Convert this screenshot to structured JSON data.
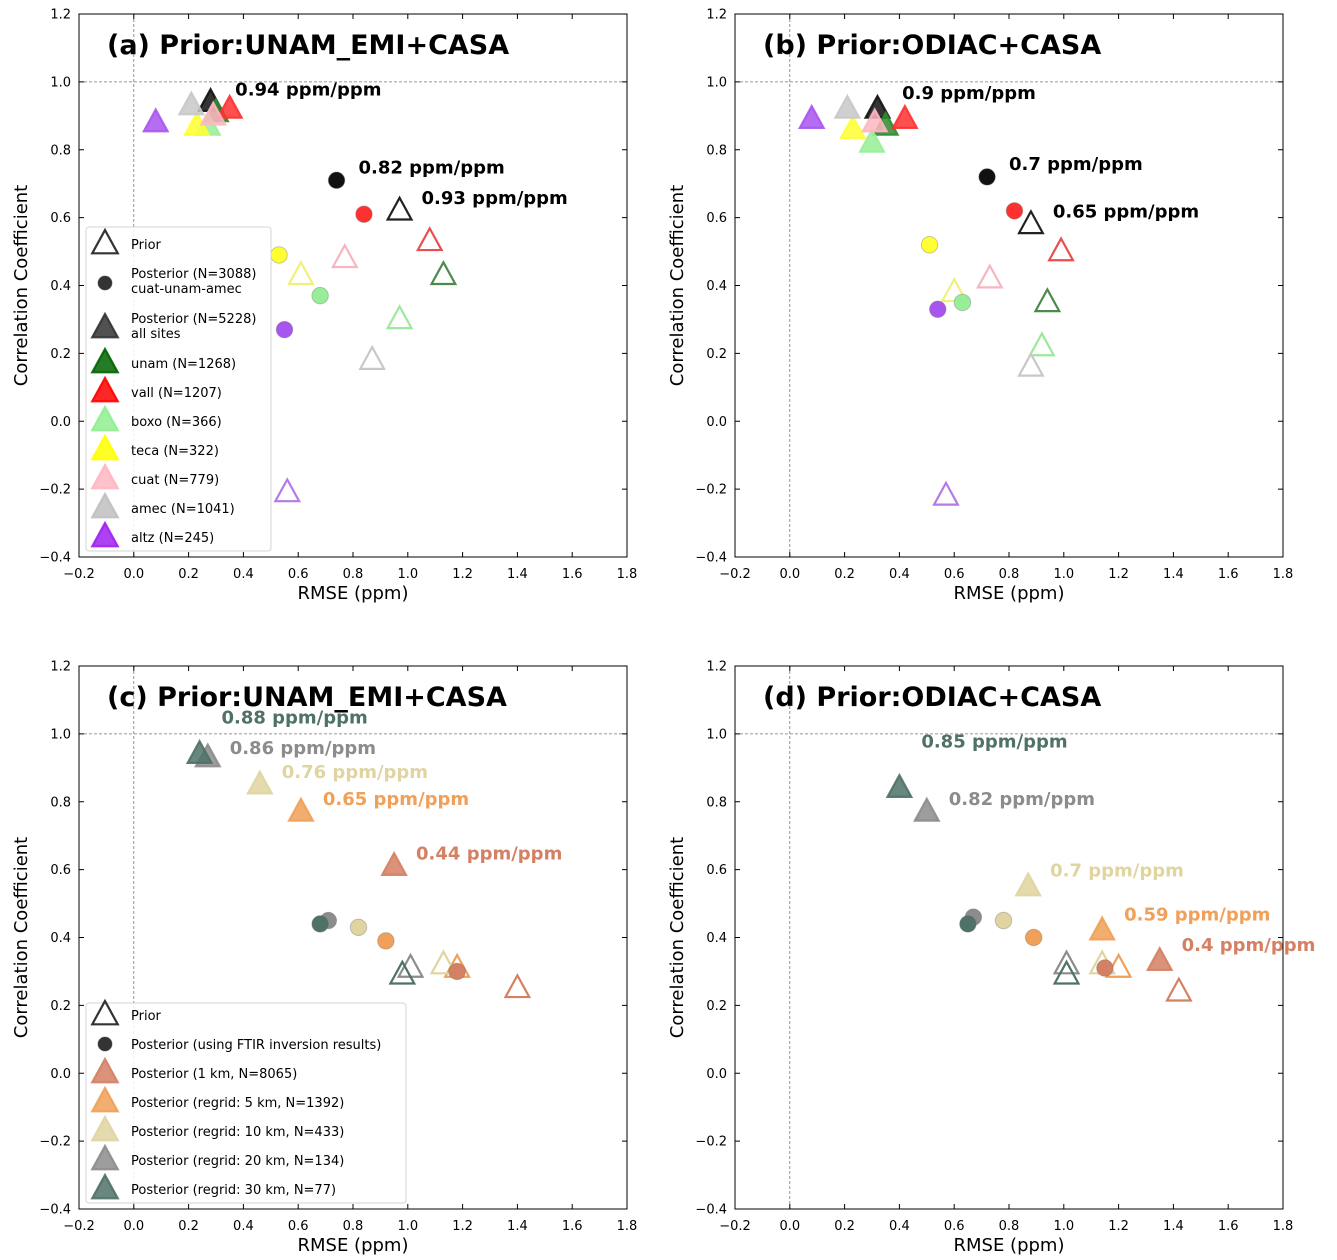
{
  "chart_data": [
    {
      "id": "a",
      "type": "scatter",
      "title": "(a) Prior:UNAM_EMI+CASA",
      "xlabel": "RMSE (ppm)",
      "ylabel": "Correlation Coefficient",
      "xlim": [
        -0.2,
        1.8
      ],
      "ylim": [
        -0.4,
        1.2
      ],
      "xticks": [
        "−0.2",
        "0.0",
        "0.2",
        "0.4",
        "0.6",
        "0.8",
        "1.0",
        "1.2",
        "1.4",
        "1.6",
        "1.8"
      ],
      "yticks": [
        "−0.4",
        "−0.2",
        "0.0",
        "0.2",
        "0.4",
        "0.6",
        "0.8",
        "1.0",
        "1.2"
      ],
      "grid": false,
      "reference_lines": {
        "y": 1.0,
        "x": 0.0
      },
      "legend": {
        "placement": "lower-left",
        "entries": [
          {
            "label": "Prior",
            "marker": "triangle-open",
            "color": "#333333"
          },
          {
            "label": "Posterior (N=3088)\ncuat-unam-amec",
            "marker": "circle",
            "color": "#333333"
          },
          {
            "label": "Posterior (N=5228)\nall sites",
            "marker": "triangle",
            "color": "#333333"
          },
          {
            "label": "unam (N=1268)",
            "marker": "triangle",
            "color": "#006400"
          },
          {
            "label": "vall (N=1207)",
            "marker": "triangle",
            "color": "#ff0000"
          },
          {
            "label": "boxo (N=366)",
            "marker": "triangle",
            "color": "#90ee90"
          },
          {
            "label": "teca (N=322)",
            "marker": "triangle",
            "color": "#ffff00"
          },
          {
            "label": "cuat (N=779)",
            "marker": "triangle",
            "color": "#ffb6c1"
          },
          {
            "label": "amec (N=1041)",
            "marker": "triangle",
            "color": "#c0c0c0"
          },
          {
            "label": "altz (N=245)",
            "marker": "triangle",
            "color": "#a020f0"
          }
        ]
      },
      "points": [
        {
          "x": 0.97,
          "y": 0.62,
          "marker": "triangle-open",
          "color": "#222222"
        },
        {
          "x": 1.13,
          "y": 0.43,
          "marker": "triangle-open",
          "color": "#4d8b4d"
        },
        {
          "x": 1.08,
          "y": 0.53,
          "marker": "triangle-open",
          "color": "#e85050"
        },
        {
          "x": 0.97,
          "y": 0.3,
          "marker": "triangle-open",
          "color": "#9ee89e"
        },
        {
          "x": 0.61,
          "y": 0.43,
          "marker": "triangle-open",
          "color": "#f0f07a"
        },
        {
          "x": 0.77,
          "y": 0.48,
          "marker": "triangle-open",
          "color": "#f7b5bf"
        },
        {
          "x": 0.87,
          "y": 0.18,
          "marker": "triangle-open",
          "color": "#c8c8c8"
        },
        {
          "x": 0.56,
          "y": -0.21,
          "marker": "triangle-open",
          "color": "#b57ae8"
        },
        {
          "x": 0.74,
          "y": 0.71,
          "marker": "circle",
          "color": "#111111"
        },
        {
          "x": 0.84,
          "y": 0.61,
          "marker": "circle",
          "color": "#ff3030"
        },
        {
          "x": 0.53,
          "y": 0.49,
          "marker": "circle",
          "color": "#ffff33"
        },
        {
          "x": 0.68,
          "y": 0.37,
          "marker": "circle",
          "color": "#98ee98"
        },
        {
          "x": 0.55,
          "y": 0.27,
          "marker": "circle",
          "color": "#a855f0"
        },
        {
          "x": 0.28,
          "y": 0.94,
          "marker": "triangle",
          "color": "#111111"
        },
        {
          "x": 0.3,
          "y": 0.91,
          "marker": "triangle",
          "color": "#2e8b2e"
        },
        {
          "x": 0.35,
          "y": 0.92,
          "marker": "triangle",
          "color": "#ff3030"
        },
        {
          "x": 0.27,
          "y": 0.87,
          "marker": "triangle",
          "color": "#98ee98"
        },
        {
          "x": 0.23,
          "y": 0.87,
          "marker": "triangle",
          "color": "#ffff33"
        },
        {
          "x": 0.29,
          "y": 0.9,
          "marker": "triangle",
          "color": "#ffb6c1"
        },
        {
          "x": 0.21,
          "y": 0.93,
          "marker": "triangle",
          "color": "#c8c8c8"
        },
        {
          "x": 0.08,
          "y": 0.88,
          "marker": "triangle",
          "color": "#a855f0"
        }
      ],
      "annotations": [
        {
          "text": "0.94 ppm/ppm",
          "x": 0.37,
          "y": 0.96,
          "color": "#000000"
        },
        {
          "text": "0.82 ppm/ppm",
          "x": 0.82,
          "y": 0.73,
          "color": "#000000"
        },
        {
          "text": "0.93 ppm/ppm",
          "x": 1.05,
          "y": 0.64,
          "color": "#000000"
        }
      ]
    },
    {
      "id": "b",
      "type": "scatter",
      "title": "(b) Prior:ODIAC+CASA",
      "xlabel": "RMSE (ppm)",
      "ylabel": "Correlation Coefficient",
      "xlim": [
        -0.2,
        1.8
      ],
      "ylim": [
        -0.4,
        1.2
      ],
      "xticks": [
        "−0.2",
        "0.0",
        "0.2",
        "0.4",
        "0.6",
        "0.8",
        "1.0",
        "1.2",
        "1.4",
        "1.6",
        "1.8"
      ],
      "yticks": [
        "−0.4",
        "−0.2",
        "0.0",
        "0.2",
        "0.4",
        "0.6",
        "0.8",
        "1.0",
        "1.2"
      ],
      "grid": false,
      "reference_lines": {
        "y": 1.0,
        "x": 0.0
      },
      "points": [
        {
          "x": 0.88,
          "y": 0.58,
          "marker": "triangle-open",
          "color": "#222222"
        },
        {
          "x": 0.99,
          "y": 0.5,
          "marker": "triangle-open",
          "color": "#e85050"
        },
        {
          "x": 0.94,
          "y": 0.35,
          "marker": "triangle-open",
          "color": "#4d8b4d"
        },
        {
          "x": 0.92,
          "y": 0.22,
          "marker": "triangle-open",
          "color": "#9ee89e"
        },
        {
          "x": 0.73,
          "y": 0.42,
          "marker": "triangle-open",
          "color": "#f7b5bf"
        },
        {
          "x": 0.6,
          "y": 0.38,
          "marker": "triangle-open",
          "color": "#f0f07a"
        },
        {
          "x": 0.88,
          "y": 0.16,
          "marker": "triangle-open",
          "color": "#c8c8c8"
        },
        {
          "x": 0.57,
          "y": -0.22,
          "marker": "triangle-open",
          "color": "#b57ae8"
        },
        {
          "x": 0.72,
          "y": 0.72,
          "marker": "circle",
          "color": "#111111"
        },
        {
          "x": 0.82,
          "y": 0.62,
          "marker": "circle",
          "color": "#ff3030"
        },
        {
          "x": 0.51,
          "y": 0.52,
          "marker": "circle",
          "color": "#ffff33"
        },
        {
          "x": 0.63,
          "y": 0.35,
          "marker": "circle",
          "color": "#98ee98"
        },
        {
          "x": 0.54,
          "y": 0.33,
          "marker": "circle",
          "color": "#a855f0"
        },
        {
          "x": 0.32,
          "y": 0.92,
          "marker": "triangle",
          "color": "#111111"
        },
        {
          "x": 0.35,
          "y": 0.87,
          "marker": "triangle",
          "color": "#2e8b2e"
        },
        {
          "x": 0.42,
          "y": 0.89,
          "marker": "triangle",
          "color": "#ff3030"
        },
        {
          "x": 0.3,
          "y": 0.82,
          "marker": "triangle",
          "color": "#98ee98"
        },
        {
          "x": 0.23,
          "y": 0.86,
          "marker": "triangle",
          "color": "#ffff33"
        },
        {
          "x": 0.31,
          "y": 0.88,
          "marker": "triangle",
          "color": "#ffb6c1"
        },
        {
          "x": 0.21,
          "y": 0.92,
          "marker": "triangle",
          "color": "#c8c8c8"
        },
        {
          "x": 0.08,
          "y": 0.89,
          "marker": "triangle",
          "color": "#a855f0"
        }
      ],
      "annotations": [
        {
          "text": "0.9 ppm/ppm",
          "x": 0.41,
          "y": 0.95,
          "color": "#000000"
        },
        {
          "text": "0.7 ppm/ppm",
          "x": 0.8,
          "y": 0.74,
          "color": "#000000"
        },
        {
          "text": "0.65 ppm/ppm",
          "x": 0.96,
          "y": 0.6,
          "color": "#000000"
        }
      ]
    },
    {
      "id": "c",
      "type": "scatter",
      "title": "(c) Prior:UNAM_EMI+CASA",
      "xlabel": "RMSE (ppm)",
      "ylabel": "Correlation Coefficient",
      "xlim": [
        -0.2,
        1.8
      ],
      "ylim": [
        -0.4,
        1.2
      ],
      "xticks": [
        "−0.2",
        "0.0",
        "0.2",
        "0.4",
        "0.6",
        "0.8",
        "1.0",
        "1.2",
        "1.4",
        "1.6",
        "1.8"
      ],
      "yticks": [
        "−0.4",
        "−0.2",
        "0.0",
        "0.2",
        "0.4",
        "0.6",
        "0.8",
        "1.0",
        "1.2"
      ],
      "grid": false,
      "reference_lines": {
        "y": 1.0,
        "x": 0.0
      },
      "legend": {
        "placement": "lower-left",
        "entries": [
          {
            "label": "Prior",
            "marker": "triangle-open",
            "color": "#333333"
          },
          {
            "label": "Posterior (using FTIR inversion results)",
            "marker": "circle",
            "color": "#333333"
          },
          {
            "label": "Posterior (1 km, N=8065)",
            "marker": "triangle",
            "color": "#d48063"
          },
          {
            "label": "Posterior (regrid: 5 km, N=1392)",
            "marker": "triangle",
            "color": "#f0a058"
          },
          {
            "label": "Posterior (regrid: 10 km, N=433)",
            "marker": "triangle",
            "color": "#e0d4a0"
          },
          {
            "label": "Posterior (regrid: 20 km, N=134)",
            "marker": "triangle",
            "color": "#8c8c8c"
          },
          {
            "label": "Posterior (regrid: 30 km, N=77)",
            "marker": "triangle",
            "color": "#4f7168"
          }
        ]
      },
      "points": [
        {
          "x": 1.4,
          "y": 0.25,
          "marker": "triangle-open",
          "color": "#d48063"
        },
        {
          "x": 1.18,
          "y": 0.31,
          "marker": "triangle-open",
          "color": "#f0a058"
        },
        {
          "x": 1.13,
          "y": 0.32,
          "marker": "triangle-open",
          "color": "#e0d4a0"
        },
        {
          "x": 1.01,
          "y": 0.31,
          "marker": "triangle-open",
          "color": "#8c8c8c"
        },
        {
          "x": 0.98,
          "y": 0.29,
          "marker": "triangle-open",
          "color": "#4f7168"
        },
        {
          "x": 1.18,
          "y": 0.3,
          "marker": "circle",
          "color": "#d48063"
        },
        {
          "x": 0.92,
          "y": 0.39,
          "marker": "circle",
          "color": "#f0a058"
        },
        {
          "x": 0.82,
          "y": 0.43,
          "marker": "circle",
          "color": "#e0d4a0"
        },
        {
          "x": 0.71,
          "y": 0.45,
          "marker": "circle",
          "color": "#8c8c8c"
        },
        {
          "x": 0.68,
          "y": 0.44,
          "marker": "circle",
          "color": "#4f7168"
        },
        {
          "x": 0.95,
          "y": 0.61,
          "marker": "triangle",
          "color": "#d48063"
        },
        {
          "x": 0.61,
          "y": 0.77,
          "marker": "triangle",
          "color": "#f0a058"
        },
        {
          "x": 0.46,
          "y": 0.85,
          "marker": "triangle",
          "color": "#e0d4a0"
        },
        {
          "x": 0.27,
          "y": 0.93,
          "marker": "triangle",
          "color": "#8c8c8c"
        },
        {
          "x": 0.24,
          "y": 0.94,
          "marker": "triangle",
          "color": "#4f7168"
        }
      ],
      "annotations": [
        {
          "text": "0.88 ppm/ppm",
          "x": 0.32,
          "y": 1.03,
          "color": "#4f7168"
        },
        {
          "text": "0.86 ppm/ppm",
          "x": 0.35,
          "y": 0.94,
          "color": "#8c8c8c"
        },
        {
          "text": "0.76 ppm/ppm",
          "x": 0.54,
          "y": 0.87,
          "color": "#e0d4a0"
        },
        {
          "text": "0.65 ppm/ppm",
          "x": 0.69,
          "y": 0.79,
          "color": "#f0a058"
        },
        {
          "text": "0.44 ppm/ppm",
          "x": 1.03,
          "y": 0.63,
          "color": "#d48063"
        }
      ]
    },
    {
      "id": "d",
      "type": "scatter",
      "title": "(d) Prior:ODIAC+CASA",
      "xlabel": "RMSE (ppm)",
      "ylabel": "Correlation Coefficient",
      "xlim": [
        -0.2,
        1.8
      ],
      "ylim": [
        -0.4,
        1.2
      ],
      "xticks": [
        "−0.2",
        "0.0",
        "0.2",
        "0.4",
        "0.6",
        "0.8",
        "1.0",
        "1.2",
        "1.4",
        "1.6",
        "1.8"
      ],
      "yticks": [
        "−0.4",
        "−0.2",
        "0.0",
        "0.2",
        "0.4",
        "0.6",
        "0.8",
        "1.0",
        "1.2"
      ],
      "grid": false,
      "reference_lines": {
        "y": 1.0,
        "x": 0.0
      },
      "points": [
        {
          "x": 1.42,
          "y": 0.24,
          "marker": "triangle-open",
          "color": "#d48063"
        },
        {
          "x": 1.2,
          "y": 0.31,
          "marker": "triangle-open",
          "color": "#f0a058"
        },
        {
          "x": 1.14,
          "y": 0.32,
          "marker": "triangle-open",
          "color": "#e0d4a0"
        },
        {
          "x": 1.01,
          "y": 0.32,
          "marker": "triangle-open",
          "color": "#8c8c8c"
        },
        {
          "x": 1.01,
          "y": 0.29,
          "marker": "triangle-open",
          "color": "#4f7168"
        },
        {
          "x": 1.15,
          "y": 0.31,
          "marker": "circle",
          "color": "#d48063"
        },
        {
          "x": 0.89,
          "y": 0.4,
          "marker": "circle",
          "color": "#f0a058"
        },
        {
          "x": 0.78,
          "y": 0.45,
          "marker": "circle",
          "color": "#e0d4a0"
        },
        {
          "x": 0.67,
          "y": 0.46,
          "marker": "circle",
          "color": "#8c8c8c"
        },
        {
          "x": 0.65,
          "y": 0.44,
          "marker": "circle",
          "color": "#4f7168"
        },
        {
          "x": 1.35,
          "y": 0.33,
          "marker": "triangle",
          "color": "#d48063"
        },
        {
          "x": 1.14,
          "y": 0.42,
          "marker": "triangle",
          "color": "#f0a058"
        },
        {
          "x": 0.87,
          "y": 0.55,
          "marker": "triangle",
          "color": "#e0d4a0"
        },
        {
          "x": 0.5,
          "y": 0.77,
          "marker": "triangle",
          "color": "#8c8c8c"
        },
        {
          "x": 0.4,
          "y": 0.84,
          "marker": "triangle",
          "color": "#4f7168"
        }
      ],
      "annotations": [
        {
          "text": "0.85 ppm/ppm",
          "x": 0.48,
          "y": 0.96,
          "color": "#4f7168"
        },
        {
          "text": "0.82 ppm/ppm",
          "x": 0.58,
          "y": 0.79,
          "color": "#8c8c8c"
        },
        {
          "text": "0.7 ppm/ppm",
          "x": 0.95,
          "y": 0.58,
          "color": "#e0d4a0"
        },
        {
          "text": "0.59 ppm/ppm",
          "x": 1.22,
          "y": 0.45,
          "color": "#f0a058"
        },
        {
          "text": "0.4 ppm/ppm",
          "x": 1.43,
          "y": 0.36,
          "color": "#d48063"
        }
      ]
    }
  ]
}
